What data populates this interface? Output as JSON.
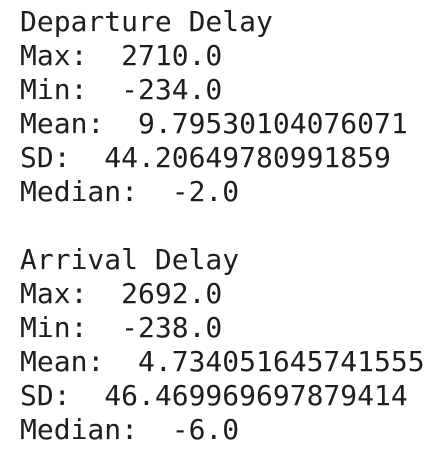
{
  "sections": [
    {
      "title": "Departure Delay",
      "stats": [
        {
          "label": "Max:",
          "value": "2710.0"
        },
        {
          "label": "Min:",
          "value": "-234.0"
        },
        {
          "label": "Mean:",
          "value": "9.79530104076071"
        },
        {
          "label": "SD:",
          "value": "44.20649780991859"
        },
        {
          "label": "Median:",
          "value": "-2.0"
        }
      ]
    },
    {
      "title": "Arrival Delay",
      "stats": [
        {
          "label": "Max:",
          "value": "2692.0"
        },
        {
          "label": "Min:",
          "value": "-238.0"
        },
        {
          "label": "Mean:",
          "value": "4.734051645741555"
        },
        {
          "label": "SD:",
          "value": "46.469969697879414"
        },
        {
          "label": "Median:",
          "value": "-6.0"
        }
      ]
    }
  ]
}
